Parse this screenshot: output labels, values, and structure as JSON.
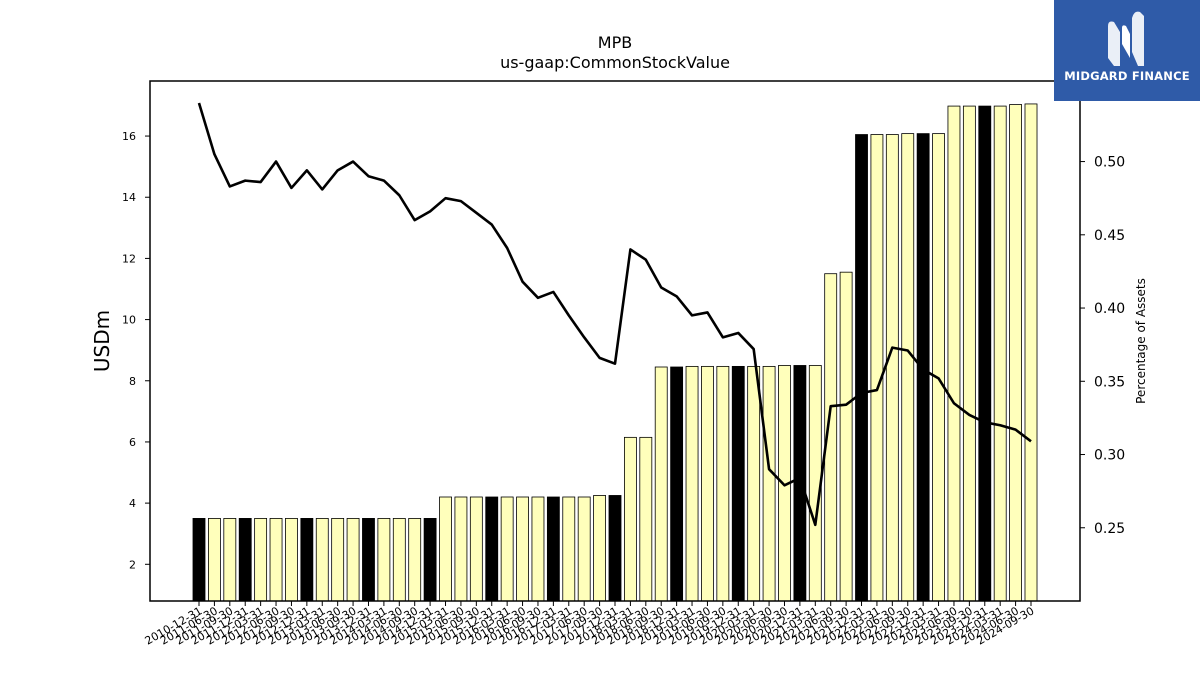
{
  "chart_data": {
    "type": "bar+line",
    "title": "MPB",
    "subtitle": "us-gaap:CommonStockValue",
    "ylabel_left": "USDm",
    "ylabel_right": "Percentage of Assets",
    "ylim_left": [
      0.8,
      17.8
    ],
    "ylim_right": [
      0.2,
      0.555
    ],
    "left_ticks": [
      2,
      4,
      6,
      8,
      10,
      12,
      14,
      16
    ],
    "right_ticks": [
      0.25,
      0.3,
      0.35,
      0.4,
      0.45,
      0.5
    ],
    "right_tick_labels": [
      "0.25",
      "0.30",
      "0.35",
      "0.40",
      "0.45",
      "0.50"
    ],
    "grid": false,
    "bar_colors": {
      "annual": "#000000",
      "quarterly": "#ffffbb"
    },
    "line_color": "#000000",
    "x_labels": [
      "2010-12-31",
      "2011-06-30",
      "2011-09-30",
      "2011-12-31",
      "2012-03-31",
      "2012-06-30",
      "2012-09-30",
      "2012-12-31",
      "2013-03-31",
      "2013-06-30",
      "2013-09-30",
      "2013-12-31",
      "2014-03-31",
      "2014-06-30",
      "2014-09-30",
      "2014-12-31",
      "2015-03-31",
      "2015-06-30",
      "2015-09-30",
      "2015-12-31",
      "2016-03-31",
      "2016-06-30",
      "2016-09-30",
      "2016-12-31",
      "2017-03-31",
      "2017-06-30",
      "2017-09-30",
      "2017-12-31",
      "2018-03-31",
      "2018-06-30",
      "2018-09-30",
      "2018-12-31",
      "2019-03-31",
      "2019-06-30",
      "2019-09-30",
      "2019-12-31",
      "2020-03-31",
      "2020-06-30",
      "2020-09-30",
      "2020-12-31",
      "2021-03-31",
      "2021-06-30",
      "2021-09-30",
      "2021-12-31",
      "2022-03-31",
      "2022-06-30",
      "2022-09-30",
      "2022-12-31",
      "2023-03-31",
      "2023-06-30",
      "2023-09-30",
      "2023-12-31",
      "2024-03-31",
      "2024-06-30",
      "2024-09-30"
    ],
    "bar_values": [
      3.5,
      3.5,
      3.5,
      3.5,
      3.5,
      3.5,
      3.5,
      3.5,
      3.5,
      3.5,
      3.5,
      3.5,
      3.5,
      3.5,
      3.5,
      3.5,
      4.2,
      4.2,
      4.2,
      4.2,
      4.2,
      4.2,
      4.2,
      4.2,
      4.2,
      4.2,
      4.25,
      4.25,
      6.15,
      6.15,
      8.45,
      8.45,
      8.47,
      8.47,
      8.47,
      8.47,
      8.47,
      8.47,
      8.5,
      8.5,
      8.5,
      11.5,
      11.55,
      16.05,
      16.05,
      16.05,
      16.08,
      16.08,
      16.08,
      16.98,
      16.98,
      16.98,
      16.98,
      17.03,
      17.05
    ],
    "bar_is_annual": [
      true,
      false,
      false,
      true,
      false,
      false,
      false,
      true,
      false,
      false,
      false,
      true,
      false,
      false,
      false,
      true,
      false,
      false,
      false,
      true,
      false,
      false,
      false,
      true,
      false,
      false,
      false,
      true,
      false,
      false,
      false,
      true,
      false,
      false,
      false,
      true,
      false,
      false,
      false,
      true,
      false,
      false,
      false,
      true,
      false,
      false,
      false,
      true,
      false,
      false,
      false,
      true,
      false,
      false,
      false
    ],
    "line_values": [
      0.54,
      0.505,
      0.483,
      0.487,
      0.486,
      0.5,
      0.482,
      0.494,
      0.481,
      0.494,
      0.5,
      0.49,
      0.487,
      0.477,
      0.46,
      0.466,
      0.475,
      0.473,
      0.465,
      0.457,
      0.441,
      0.418,
      0.407,
      0.411,
      0.395,
      0.38,
      0.366,
      0.362,
      0.44,
      0.433,
      0.414,
      0.408,
      0.395,
      0.397,
      0.38,
      0.383,
      0.372,
      0.29,
      0.279,
      0.284,
      0.252,
      0.333,
      0.334,
      0.342,
      0.344,
      0.373,
      0.371,
      0.358,
      0.352,
      0.335,
      0.327,
      0.322,
      0.32,
      0.317,
      0.309
    ]
  },
  "logo": {
    "text": "MIDGARD FINANCE",
    "icon": "midgard-logo-icon"
  }
}
